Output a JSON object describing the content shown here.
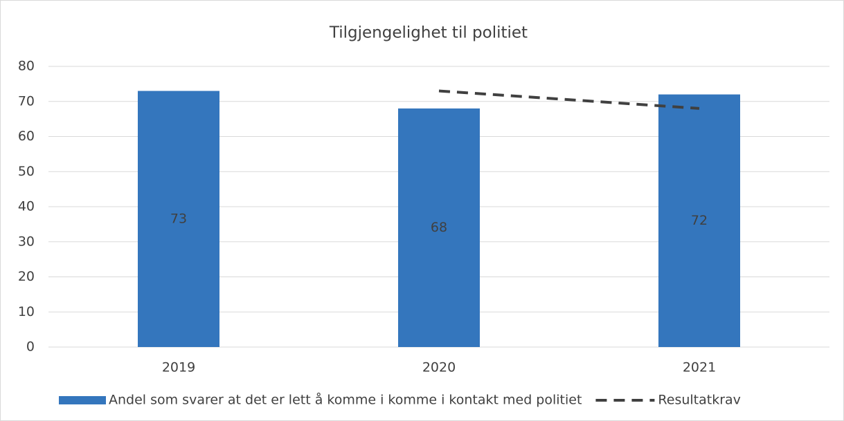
{
  "chart_data": {
    "type": "bar",
    "title": "Tilgjengelighet til politiet",
    "categories": [
      "2019",
      "2020",
      "2021"
    ],
    "series": [
      {
        "name": "Andel som svarer at det er lett å komme i komme i kontakt med politiet",
        "color": "#3476bd",
        "type": "bar",
        "values": [
          73,
          68,
          72
        ]
      },
      {
        "name": "Resultatkrav",
        "color": "#404040",
        "type": "line",
        "values": [
          null,
          73,
          68
        ]
      }
    ],
    "ylim": [
      0,
      80
    ],
    "yticks": [
      0,
      10,
      20,
      30,
      40,
      50,
      60,
      70,
      80
    ],
    "grid": true,
    "legend": "bottom"
  }
}
